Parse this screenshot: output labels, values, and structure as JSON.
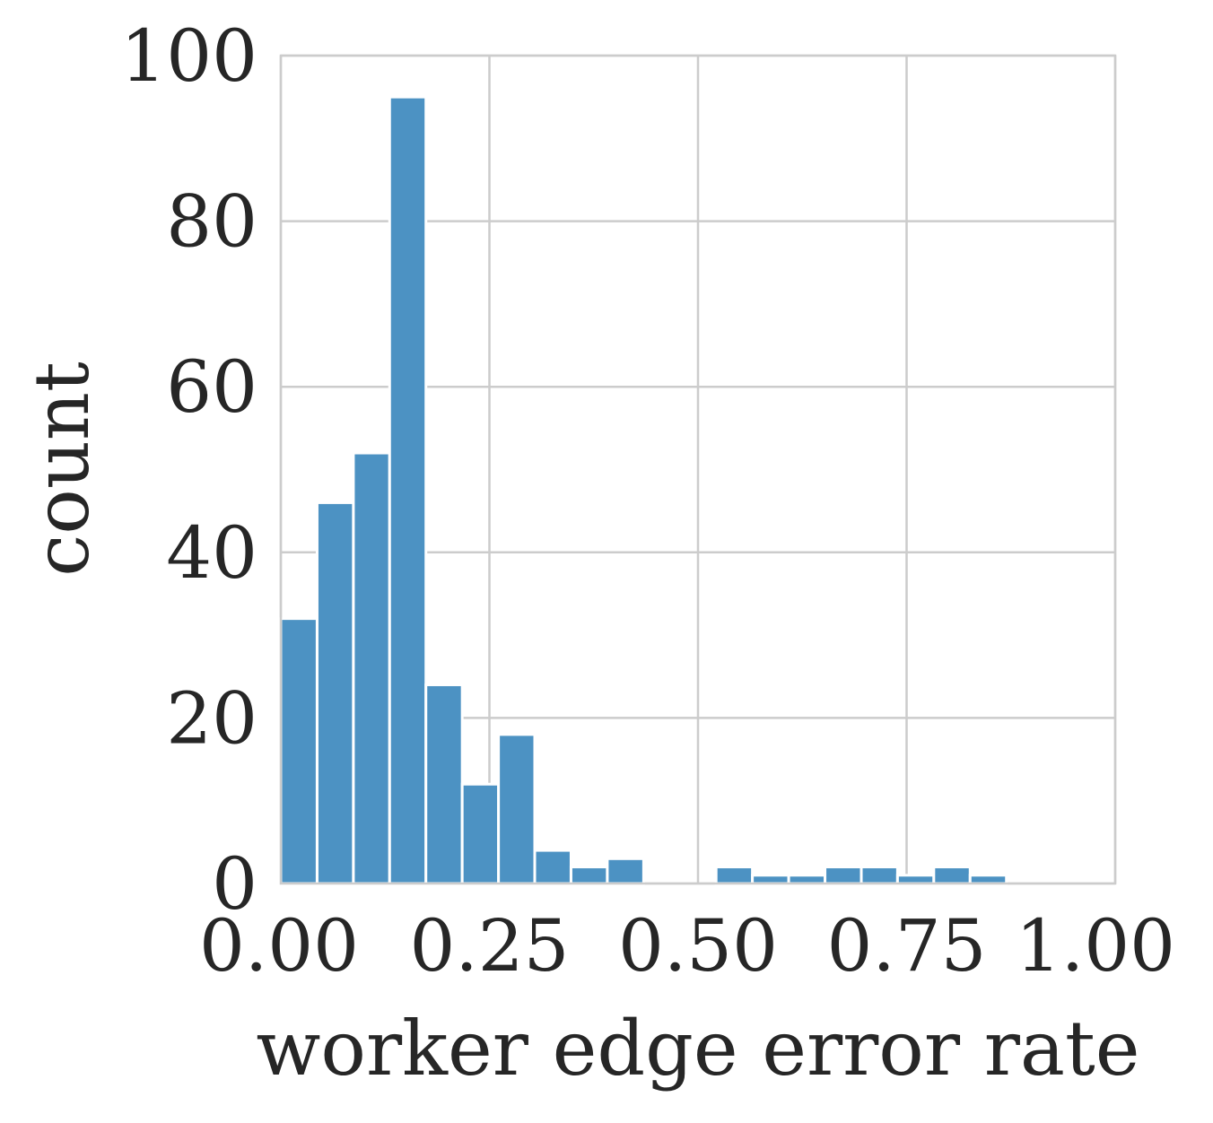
{
  "chart_data": {
    "type": "bar",
    "title": "",
    "xlabel": "worker edge error rate",
    "ylabel": "count",
    "xlim": [
      0,
      1
    ],
    "ylim": [
      0,
      100
    ],
    "xticks": [
      0,
      0.25,
      0.5,
      0.75,
      1
    ],
    "xtick_labels": [
      "0.00",
      "0.25",
      "0.50",
      "0.75",
      "1.00"
    ],
    "yticks": [
      0,
      20,
      40,
      60,
      80,
      100
    ],
    "ytick_labels": [
      "0",
      "20",
      "40",
      "60",
      "80",
      "100"
    ],
    "grid": true,
    "bar_color": "#4c92c3",
    "bins": [
      {
        "x0": 0.0,
        "x1": 0.0435,
        "count": 32
      },
      {
        "x0": 0.0435,
        "x1": 0.087,
        "count": 46
      },
      {
        "x0": 0.087,
        "x1": 0.1304,
        "count": 52
      },
      {
        "x0": 0.1304,
        "x1": 0.1739,
        "count": 95
      },
      {
        "x0": 0.1739,
        "x1": 0.2174,
        "count": 24
      },
      {
        "x0": 0.2174,
        "x1": 0.2609,
        "count": 12
      },
      {
        "x0": 0.2609,
        "x1": 0.3043,
        "count": 18
      },
      {
        "x0": 0.3043,
        "x1": 0.3478,
        "count": 4
      },
      {
        "x0": 0.3478,
        "x1": 0.3913,
        "count": 2
      },
      {
        "x0": 0.3913,
        "x1": 0.4348,
        "count": 3
      },
      {
        "x0": 0.4348,
        "x1": 0.4783,
        "count": 0
      },
      {
        "x0": 0.4783,
        "x1": 0.5217,
        "count": 0
      },
      {
        "x0": 0.5217,
        "x1": 0.5652,
        "count": 2
      },
      {
        "x0": 0.5652,
        "x1": 0.6087,
        "count": 1
      },
      {
        "x0": 0.6087,
        "x1": 0.6522,
        "count": 1
      },
      {
        "x0": 0.6522,
        "x1": 0.6957,
        "count": 2
      },
      {
        "x0": 0.6957,
        "x1": 0.7391,
        "count": 2
      },
      {
        "x0": 0.7391,
        "x1": 0.7826,
        "count": 1
      },
      {
        "x0": 0.7826,
        "x1": 0.8261,
        "count": 2
      },
      {
        "x0": 0.8261,
        "x1": 0.8696,
        "count": 1
      }
    ]
  }
}
